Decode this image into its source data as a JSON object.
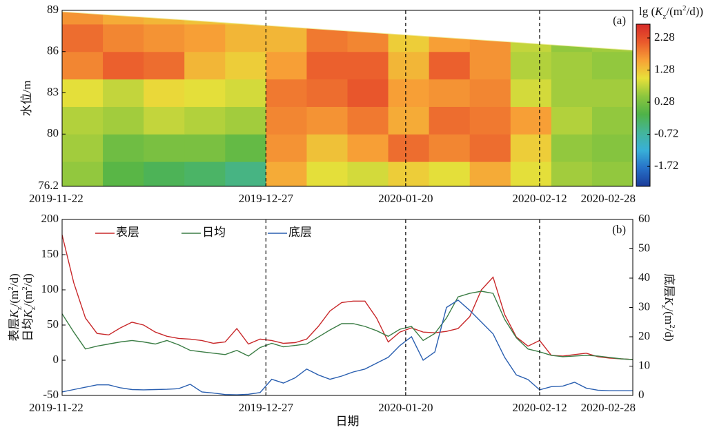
{
  "chart_data": [
    {
      "type": "heatmap",
      "ylabel": "水位/m",
      "panel_label": "(a)",
      "xlim": [
        "2019-11-22",
        "2020-02-28"
      ],
      "xticks": [
        "2019-11-22",
        "2019-12-27",
        "2020-01-20",
        "2020-02-12",
        "2020-02-28"
      ],
      "ylim": [
        76.2,
        89
      ],
      "yticks": [
        76.2,
        80,
        83,
        86,
        89
      ],
      "vlines": [
        "2019-12-27",
        "2020-01-20",
        "2020-02-12"
      ],
      "surface": {
        "x": [
          "2019-11-22",
          "2020-02-28"
        ],
        "values": [
          88.9,
          86.1
        ]
      },
      "x_edges": [
        "2019-11-22",
        "2019-11-29",
        "2019-12-06",
        "2019-12-13",
        "2019-12-20",
        "2019-12-27",
        "2020-01-03",
        "2020-01-10",
        "2020-01-17",
        "2020-01-24",
        "2020-01-31",
        "2020-02-07",
        "2020-02-14",
        "2020-02-21",
        "2020-02-28"
      ],
      "y_edges": [
        76.2,
        78,
        80,
        82,
        84,
        86,
        88,
        89
      ],
      "z": [
        [
          0.5,
          0.0,
          -0.2,
          -0.3,
          -0.5,
          1.5,
          1.0,
          0.9,
          1.2,
          1.0,
          1.5,
          1.0,
          0.6,
          0.5
        ],
        [
          0.6,
          0.2,
          0.3,
          0.3,
          0.1,
          1.7,
          1.3,
          1.6,
          2.0,
          1.8,
          2.0,
          1.2,
          0.5,
          0.4
        ],
        [
          0.7,
          0.6,
          0.8,
          0.7,
          0.6,
          1.8,
          1.7,
          1.9,
          1.5,
          2.0,
          1.9,
          1.6,
          0.7,
          0.5
        ],
        [
          1.0,
          0.8,
          1.1,
          1.0,
          0.9,
          1.9,
          2.0,
          2.2,
          1.6,
          1.7,
          1.8,
          0.9,
          0.6,
          0.6
        ],
        [
          1.8,
          2.1,
          2.0,
          1.4,
          1.2,
          1.6,
          2.1,
          2.1,
          1.4,
          2.1,
          1.7,
          0.7,
          0.6,
          0.5
        ],
        [
          2.0,
          1.8,
          1.7,
          1.6,
          1.4,
          1.4,
          1.9,
          1.8,
          1.2,
          1.6,
          1.7,
          0.8,
          0.5,
          0.6
        ],
        [
          1.7,
          1.5,
          1.4,
          1.3,
          1.2,
          1.2,
          1.5,
          1.5,
          1.1,
          1.3,
          1.4,
          1.0,
          0.8,
          0.8
        ]
      ],
      "colorbar_label": [
        "lg (",
        "K",
        "z",
        "/(m",
        "2",
        "/d))"
      ],
      "clim": [
        -2.34,
        2.71
      ],
      "cticks": [
        -1.72,
        -0.72,
        0.28,
        1.28,
        2.28
      ],
      "colormap": [
        "#1b3c9a",
        "#2670c8",
        "#38b0d8",
        "#44b59a",
        "#4fb348",
        "#8cc63e",
        "#e8e03a",
        "#f7a136",
        "#ea5a2c",
        "#d62a28"
      ]
    },
    {
      "type": "line",
      "xlabel": "日期",
      "ylabel": [
        [
          "表层",
          "K",
          "z",
          "/(m",
          "2",
          "/d)"
        ],
        [
          "日均",
          "K",
          "z",
          "/(m",
          "2",
          "/d)"
        ]
      ],
      "y2label": [
        "底层",
        "K",
        "z",
        "/(m",
        "2",
        "/d)"
      ],
      "panel_label": "(b)",
      "xlim": [
        "2019-11-22",
        "2020-02-28"
      ],
      "xticks": [
        "2019-11-22",
        "2019-12-27",
        "2020-01-20",
        "2020-02-12",
        "2020-02-28"
      ],
      "ylim": [
        -50,
        200
      ],
      "yticks": [
        -50,
        0,
        50,
        100,
        150,
        200
      ],
      "y2lim": [
        0,
        60
      ],
      "y2ticks": [
        0,
        10,
        20,
        30,
        40,
        50,
        60
      ],
      "vlines": [
        "2019-12-27",
        "2020-01-20",
        "2020-02-12"
      ],
      "legend": "upper left",
      "x": [
        "2019-11-22",
        "2019-11-24",
        "2019-11-26",
        "2019-11-28",
        "2019-11-30",
        "2019-12-02",
        "2019-12-04",
        "2019-12-06",
        "2019-12-08",
        "2019-12-10",
        "2019-12-12",
        "2019-12-14",
        "2019-12-16",
        "2019-12-18",
        "2019-12-20",
        "2019-12-22",
        "2019-12-24",
        "2019-12-26",
        "2019-12-28",
        "2019-12-30",
        "2020-01-01",
        "2020-01-03",
        "2020-01-05",
        "2020-01-07",
        "2020-01-09",
        "2020-01-11",
        "2020-01-13",
        "2020-01-15",
        "2020-01-17",
        "2020-01-19",
        "2020-01-21",
        "2020-01-23",
        "2020-01-25",
        "2020-01-27",
        "2020-01-29",
        "2020-01-31",
        "2020-02-02",
        "2020-02-04",
        "2020-02-06",
        "2020-02-08",
        "2020-02-10",
        "2020-02-12",
        "2020-02-14",
        "2020-02-16",
        "2020-02-18",
        "2020-02-20",
        "2020-02-22",
        "2020-02-24",
        "2020-02-26",
        "2020-02-28"
      ],
      "series": [
        {
          "name": "表层",
          "color": "#c8282a",
          "values": [
            178,
            110,
            60,
            38,
            36,
            46,
            54,
            50,
            40,
            34,
            31,
            30,
            28,
            24,
            26,
            45,
            23,
            30,
            28,
            24,
            25,
            30,
            48,
            70,
            82,
            84,
            84,
            60,
            26,
            40,
            46,
            40,
            39,
            41,
            45,
            62,
            100,
            118,
            65,
            33,
            20,
            28,
            7,
            6,
            8,
            10,
            5,
            3,
            2,
            1
          ]
        },
        {
          "name": "日均",
          "color": "#3b7d45",
          "values": [
            66,
            40,
            16,
            20,
            23,
            26,
            28,
            26,
            23,
            28,
            22,
            14,
            12,
            10,
            8,
            14,
            6,
            18,
            24,
            19,
            21,
            23,
            33,
            43,
            52,
            52,
            48,
            42,
            34,
            44,
            48,
            28,
            38,
            60,
            90,
            95,
            98,
            95,
            58,
            32,
            16,
            12,
            7,
            5,
            6,
            7,
            6,
            4,
            2,
            1
          ]
        },
        {
          "name": "底层",
          "color": "#2a5fb0",
          "axis": "y2",
          "values": [
            1.2,
            2,
            2.8,
            3.6,
            3.6,
            2.6,
            2,
            1.9,
            2,
            2.1,
            2.3,
            3.8,
            1.2,
            0.8,
            0.3,
            0.2,
            0.4,
            1,
            5.5,
            4.2,
            6,
            9,
            7,
            5.5,
            6.6,
            8,
            9,
            11,
            13,
            17,
            20,
            12,
            14.8,
            30,
            32.5,
            29,
            25,
            21,
            13,
            7,
            5.4,
            1.9,
            3,
            3.2,
            4.5,
            2.5,
            1.8,
            1.6,
            1.6,
            1.6
          ]
        }
      ]
    }
  ]
}
